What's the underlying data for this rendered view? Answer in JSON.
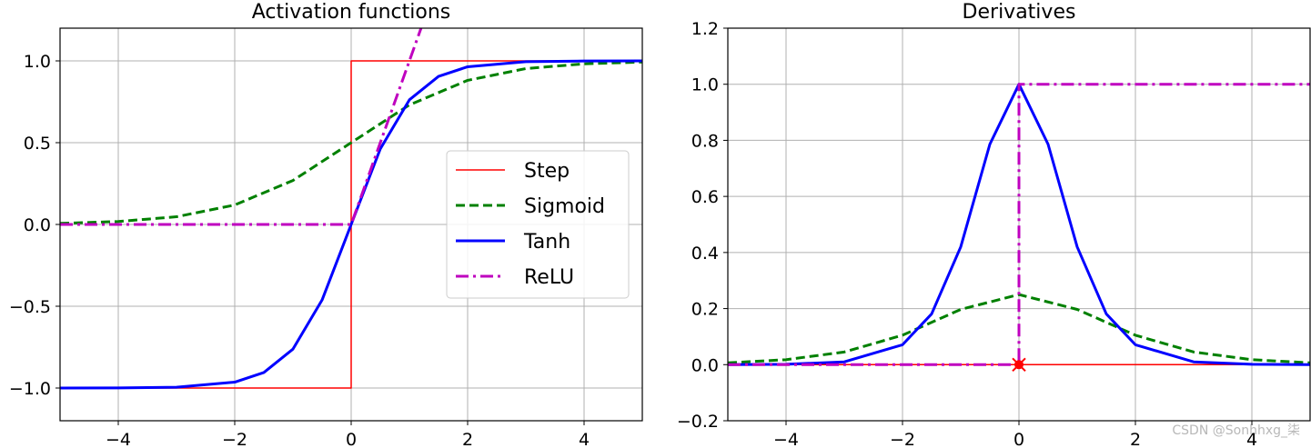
{
  "chart_data": [
    {
      "type": "line",
      "title": "Activation functions",
      "xlim": [
        -5,
        5
      ],
      "ylim": [
        -1.2,
        1.2
      ],
      "xticks": [
        -4,
        -2,
        0,
        2,
        4
      ],
      "xtick_labels": [
        "−4",
        "−2",
        "0",
        "2",
        "4"
      ],
      "yticks": [
        -1.0,
        -0.5,
        0.0,
        0.5,
        1.0
      ],
      "ytick_labels": [
        "−1.0",
        "−0.5",
        "0.0",
        "0.5",
        "1.0"
      ],
      "grid": true,
      "legend": {
        "position": "center-right",
        "visible": true
      },
      "series": [
        {
          "name": "Step",
          "color": "#ff0000",
          "style": "solid",
          "x": [
            -5,
            -1,
            0,
            0,
            1,
            5
          ],
          "y": [
            -1,
            -1,
            -1,
            1,
            1,
            1
          ]
        },
        {
          "name": "Sigmoid",
          "color": "#008000",
          "style": "dashed",
          "x": [
            -5,
            -4,
            -3,
            -2,
            -1,
            0,
            1,
            2,
            3,
            4,
            5
          ],
          "y": [
            0.0067,
            0.018,
            0.047,
            0.119,
            0.269,
            0.5,
            0.731,
            0.881,
            0.953,
            0.982,
            0.993
          ]
        },
        {
          "name": "Tanh",
          "color": "#0000ff",
          "style": "solid",
          "x": [
            -5,
            -4,
            -3,
            -2,
            -1.5,
            -1,
            -0.5,
            0,
            0.5,
            1,
            1.5,
            2,
            3,
            4,
            5
          ],
          "y": [
            -0.9999,
            -0.9993,
            -0.995,
            -0.964,
            -0.905,
            -0.762,
            -0.462,
            0,
            0.462,
            0.762,
            0.905,
            0.964,
            0.995,
            0.9993,
            0.9999
          ]
        },
        {
          "name": "ReLU",
          "color": "#bf00bf",
          "style": "dashdot",
          "x": [
            -5,
            0,
            1.2
          ],
          "y": [
            0,
            0,
            1.2
          ]
        }
      ]
    },
    {
      "type": "line",
      "title": "Derivatives",
      "xlim": [
        -5,
        5
      ],
      "ylim": [
        -0.2,
        1.2
      ],
      "xticks": [
        -4,
        -2,
        0,
        2,
        4
      ],
      "xtick_labels": [
        "−4",
        "−2",
        "0",
        "2",
        "4"
      ],
      "yticks": [
        -0.2,
        0.0,
        0.2,
        0.4,
        0.6,
        0.8,
        1.0,
        1.2
      ],
      "ytick_labels": [
        "−0.2",
        "0.0",
        "0.2",
        "0.4",
        "0.6",
        "0.8",
        "1.0",
        "1.2"
      ],
      "grid": true,
      "series": [
        {
          "name": "Step",
          "color": "#ff0000",
          "style": "solid",
          "x": [
            -5,
            5
          ],
          "y": [
            0,
            0
          ],
          "marker": {
            "x": 0,
            "y": 0,
            "symbol": "x"
          }
        },
        {
          "name": "Sigmoid",
          "color": "#008000",
          "style": "dashed",
          "x": [
            -5,
            -4,
            -3,
            -2,
            -1,
            0,
            1,
            2,
            3,
            4,
            5
          ],
          "y": [
            0.0066,
            0.0177,
            0.0452,
            0.105,
            0.197,
            0.25,
            0.197,
            0.105,
            0.0452,
            0.0177,
            0.0066
          ]
        },
        {
          "name": "Tanh",
          "color": "#0000ff",
          "style": "solid",
          "x": [
            -5,
            -4,
            -3,
            -2,
            -1.5,
            -1,
            -0.5,
            0,
            0.5,
            1,
            1.5,
            2,
            3,
            4,
            5
          ],
          "y": [
            0.0002,
            0.0013,
            0.0099,
            0.071,
            0.181,
            0.42,
            0.786,
            1.0,
            0.786,
            0.42,
            0.181,
            0.071,
            0.0099,
            0.0013,
            0.0002
          ]
        },
        {
          "name": "ReLU",
          "color": "#bf00bf",
          "style": "dashdot",
          "x": [
            -5,
            0,
            0,
            5
          ],
          "y": [
            0,
            0,
            1,
            1
          ],
          "marker": {
            "x": 0,
            "y": 0,
            "symbol": "o"
          }
        }
      ]
    }
  ],
  "watermark": "CSDN @Sonhhxg_柒"
}
